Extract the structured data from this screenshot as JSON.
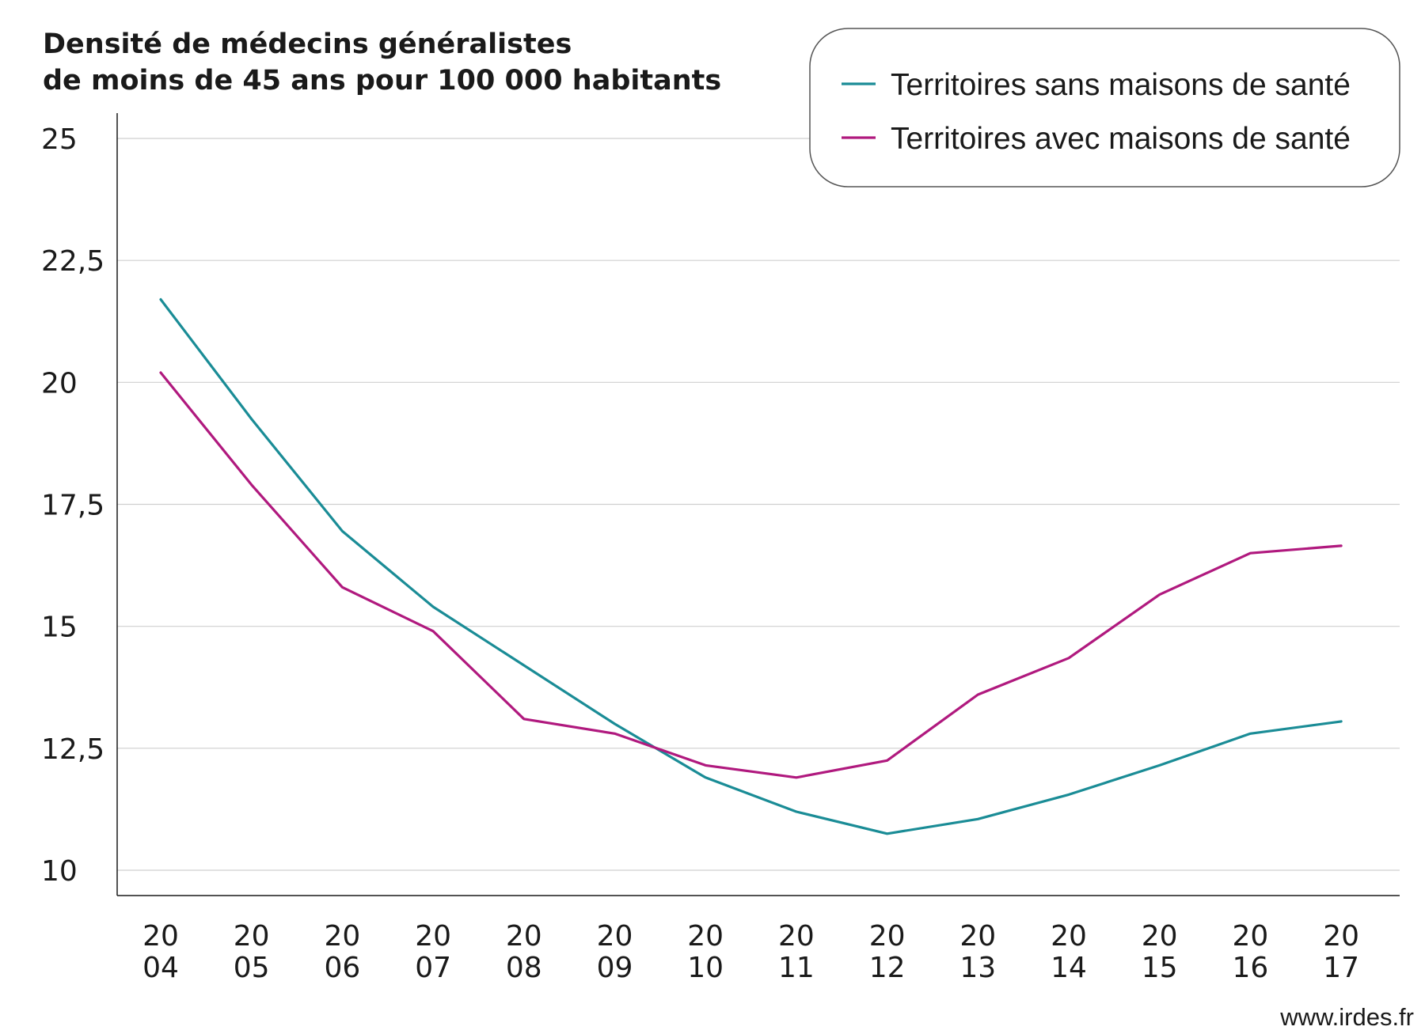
{
  "chart_data": {
    "type": "line",
    "title": [
      "Densité de médecins généralistes",
      "de moins de 45 ans pour 100 000 habitants"
    ],
    "ylim": [
      10,
      25
    ],
    "yticks": [
      {
        "value": 25,
        "label": "25"
      },
      {
        "value": 22.5,
        "label": "22,5"
      },
      {
        "value": 20,
        "label": "20"
      },
      {
        "value": 17.5,
        "label": "17,5"
      },
      {
        "value": 15,
        "label": "15"
      },
      {
        "value": 12.5,
        "label": "12,5"
      },
      {
        "value": 10,
        "label": "10"
      }
    ],
    "categories": [
      [
        "20",
        "04"
      ],
      [
        "20",
        "05"
      ],
      [
        "20",
        "06"
      ],
      [
        "20",
        "07"
      ],
      [
        "20",
        "08"
      ],
      [
        "20",
        "09"
      ],
      [
        "20",
        "10"
      ],
      [
        "20",
        "11"
      ],
      [
        "20",
        "12"
      ],
      [
        "20",
        "13"
      ],
      [
        "20",
        "14"
      ],
      [
        "20",
        "15"
      ],
      [
        "20",
        "16"
      ],
      [
        "20",
        "17"
      ]
    ],
    "series": [
      {
        "name": "Territoires sans maisons de santé",
        "color": "#1a8c96",
        "values": [
          21.7,
          19.25,
          16.95,
          15.4,
          14.2,
          13.0,
          11.9,
          11.2,
          10.75,
          11.05,
          11.55,
          12.15,
          12.8,
          13.05
        ]
      },
      {
        "name": "Territoires avec maisons de santé",
        "color": "#b0197e",
        "values": [
          20.2,
          17.9,
          15.8,
          14.9,
          13.1,
          12.8,
          12.15,
          11.9,
          12.25,
          13.6,
          14.35,
          15.65,
          16.5,
          16.65
        ]
      }
    ],
    "grid": true,
    "legend_position": "top-right"
  },
  "source": "www.irdes.fr"
}
